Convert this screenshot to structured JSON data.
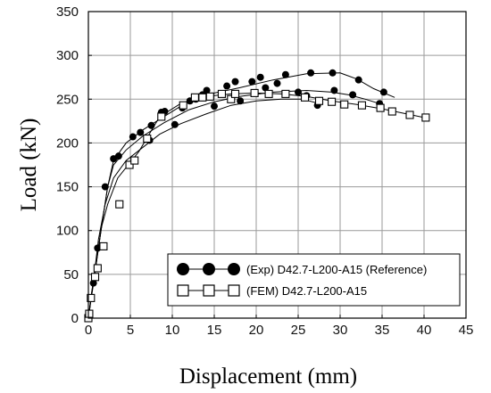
{
  "chart_data": {
    "type": "line",
    "xlabel": "Displacement (mm)",
    "ylabel": "Load (kN)",
    "xlim": [
      0,
      45
    ],
    "ylim": [
      0,
      350
    ],
    "xticks": [
      0,
      5,
      10,
      15,
      20,
      25,
      30,
      35,
      40,
      45
    ],
    "yticks": [
      0,
      50,
      100,
      150,
      200,
      250,
      300,
      350
    ],
    "grid": true,
    "legend_position": "bottom-right",
    "series": [
      {
        "name": "(Exp) D42.7-L200-A15 (Reference)",
        "marker": "filled-circle",
        "curves": [
          [
            [
              0,
              0
            ],
            [
              0.4,
              30
            ],
            [
              0.9,
              60
            ],
            [
              1.5,
              100
            ],
            [
              2.3,
              150
            ],
            [
              3,
              180
            ],
            [
              4.5,
              200
            ],
            [
              6.5,
              215
            ],
            [
              9,
              230
            ],
            [
              12,
              248
            ],
            [
              15,
              257
            ],
            [
              18,
              263
            ],
            [
              22,
              272
            ],
            [
              26,
              279
            ],
            [
              30,
              280
            ],
            [
              32,
              273
            ],
            [
              34,
              262
            ],
            [
              36.5,
              252
            ]
          ],
          [
            [
              0,
              0
            ],
            [
              0.4,
              30
            ],
            [
              0.9,
              60
            ],
            [
              1.5,
              100
            ],
            [
              2.3,
              150
            ],
            [
              3,
              175
            ],
            [
              4.5,
              192
            ],
            [
              6.5,
              208
            ],
            [
              9,
              223
            ],
            [
              12,
              238
            ],
            [
              15,
              247
            ],
            [
              18,
              253
            ],
            [
              22,
              258
            ],
            [
              26,
              260
            ],
            [
              29,
              258
            ],
            [
              31,
              255
            ],
            [
              33,
              250
            ],
            [
              35,
              244
            ]
          ],
          [
            [
              0,
              0
            ],
            [
              0.3,
              20
            ],
            [
              0.7,
              50
            ],
            [
              1.2,
              90
            ],
            [
              2,
              130
            ],
            [
              3,
              160
            ],
            [
              4.5,
              180
            ],
            [
              6.5,
              195
            ],
            [
              8.5,
              210
            ],
            [
              11,
              222
            ],
            [
              14,
              233
            ],
            [
              17,
              243
            ],
            [
              20,
              248
            ],
            [
              23,
              250
            ],
            [
              25.5,
              250
            ],
            [
              27.5,
              245
            ]
          ]
        ],
        "markers": [
          [
            0,
            0
          ],
          [
            0.6,
            40
          ],
          [
            1.1,
            80
          ],
          [
            2,
            150
          ],
          [
            3,
            182
          ],
          [
            3.6,
            185
          ],
          [
            5.3,
            207
          ],
          [
            6.2,
            212
          ],
          [
            7.3,
            203
          ],
          [
            7.5,
            220
          ],
          [
            8.7,
            235
          ],
          [
            9.1,
            236
          ],
          [
            10.3,
            221
          ],
          [
            11.2,
            240
          ],
          [
            12.1,
            248
          ],
          [
            12.8,
            250
          ],
          [
            13.6,
            255
          ],
          [
            14.1,
            260
          ],
          [
            15,
            242
          ],
          [
            16.5,
            265
          ],
          [
            17.5,
            270
          ],
          [
            18.1,
            248
          ],
          [
            19.5,
            270
          ],
          [
            20.5,
            275
          ],
          [
            21.1,
            263
          ],
          [
            22.5,
            268
          ],
          [
            23.5,
            278
          ],
          [
            25,
            258
          ],
          [
            26.5,
            280
          ],
          [
            26,
            254
          ],
          [
            27.3,
            243
          ],
          [
            29.1,
            280
          ],
          [
            29.3,
            260
          ],
          [
            31.5,
            255
          ],
          [
            32.2,
            272
          ],
          [
            34.7,
            245
          ],
          [
            35.2,
            258
          ]
        ]
      },
      {
        "name": "(FEM) D42.7-L200-A15",
        "marker": "open-square",
        "curves": [
          [
            [
              0,
              0
            ],
            [
              0.3,
              20
            ],
            [
              0.7,
              45
            ],
            [
              1.1,
              75
            ],
            [
              1.6,
              105
            ],
            [
              2.3,
              130
            ],
            [
              3.5,
              160
            ],
            [
              5,
              178
            ],
            [
              6,
              190
            ],
            [
              8.5,
              230
            ],
            [
              11,
              245
            ],
            [
              14,
              253
            ],
            [
              17,
              256
            ],
            [
              20,
              257
            ],
            [
              23,
              256
            ],
            [
              26,
              253
            ],
            [
              29,
              248
            ],
            [
              32,
              244
            ],
            [
              35,
              239
            ],
            [
              37,
              235
            ],
            [
              40,
              229
            ]
          ]
        ],
        "markers": [
          [
            0,
            0
          ],
          [
            0.1,
            5
          ],
          [
            0.3,
            23
          ],
          [
            0.8,
            47
          ],
          [
            1.1,
            57
          ],
          [
            1.8,
            82
          ],
          [
            3.7,
            130
          ],
          [
            4.9,
            175
          ],
          [
            5.5,
            180
          ],
          [
            7,
            205
          ],
          [
            8.7,
            230
          ],
          [
            11.3,
            243
          ],
          [
            12.7,
            252
          ],
          [
            13.6,
            252
          ],
          [
            14.5,
            253
          ],
          [
            15.9,
            256
          ],
          [
            17,
            250
          ],
          [
            17.5,
            256
          ],
          [
            19.8,
            257
          ],
          [
            21.5,
            256
          ],
          [
            23.5,
            256
          ],
          [
            25.8,
            252
          ],
          [
            27.5,
            248
          ],
          [
            29,
            247
          ],
          [
            30.5,
            244
          ],
          [
            32.6,
            243
          ],
          [
            34.8,
            240
          ],
          [
            36.2,
            236
          ],
          [
            38.3,
            232
          ],
          [
            40.2,
            229
          ]
        ]
      }
    ]
  }
}
